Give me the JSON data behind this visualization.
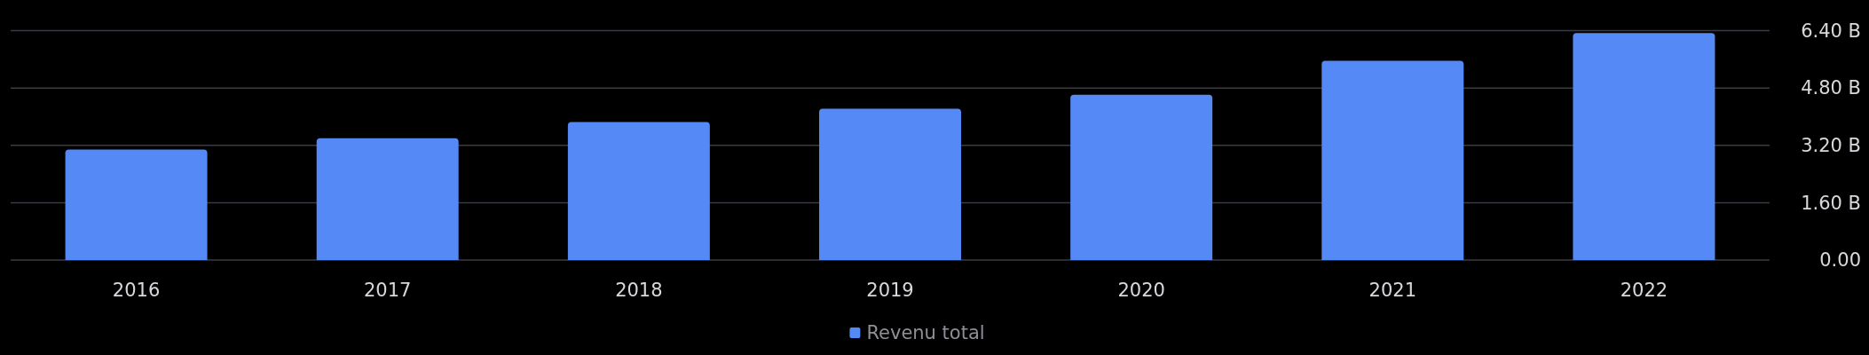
{
  "chart_data": {
    "type": "bar",
    "categories": [
      "2016",
      "2017",
      "2018",
      "2019",
      "2020",
      "2021",
      "2022"
    ],
    "series": [
      {
        "name": "Revenu total",
        "color": "#5589f5",
        "values": [
          3.08,
          3.4,
          3.85,
          4.22,
          4.61,
          5.56,
          6.33
        ]
      }
    ],
    "ylim": [
      0,
      6.4
    ],
    "yticks": [
      {
        "value": 0,
        "label": "0.00"
      },
      {
        "value": 1.6,
        "label": "1.60 B"
      },
      {
        "value": 3.2,
        "label": "3.20 B"
      },
      {
        "value": 4.8,
        "label": "4.80 B"
      },
      {
        "value": 6.4,
        "label": "6.40 B"
      }
    ],
    "grid": "y",
    "legend": "bottom"
  }
}
